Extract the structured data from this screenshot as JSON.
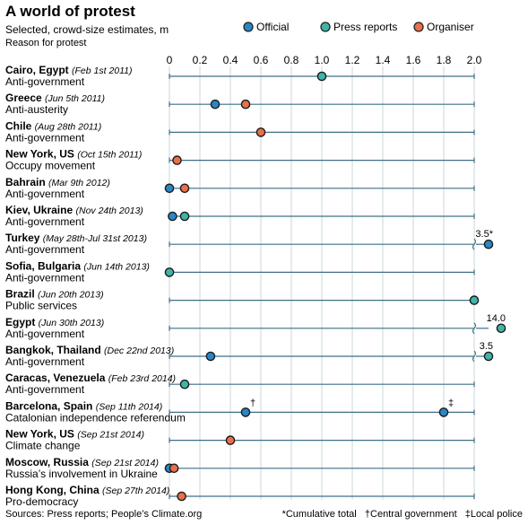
{
  "header": {
    "title": "A world of protest",
    "subtitle": "Selected, crowd-size estimates, m",
    "subsubtitle": "Reason for protest"
  },
  "legend": [
    {
      "key": "official",
      "label": "Official",
      "color": "#2b86c5"
    },
    {
      "key": "press",
      "label": "Press reports",
      "color": "#3fb5a8"
    },
    {
      "key": "organiser",
      "label": "Organiser",
      "color": "#e8704a"
    }
  ],
  "colors": {
    "official": "#2b86c5",
    "press": "#3fb5a8",
    "organiser": "#e8704a",
    "line": "#3f6f86"
  },
  "chart_data": {
    "type": "scatter",
    "title": "A world of protest",
    "subtitle": "Selected, crowd-size estimates, m",
    "xlim": [
      0,
      2.0
    ],
    "ticks": [
      "0",
      "0.2",
      "0.4",
      "0.6",
      "0.8",
      "1.0",
      "1.2",
      "1.4",
      "1.6",
      "1.8",
      "2.0"
    ],
    "tick_values": [
      0,
      0.2,
      0.4,
      0.6,
      0.8,
      1.0,
      1.2,
      1.4,
      1.6,
      1.8,
      2.0
    ],
    "series": [
      {
        "name": "Official",
        "key": "official"
      },
      {
        "name": "Press reports",
        "key": "press"
      },
      {
        "name": "Organiser",
        "key": "organiser"
      }
    ],
    "rows": [
      {
        "place": "Cairo, Egypt",
        "date": "(Feb 1st 2011)",
        "reason": "Anti-government",
        "points": [
          {
            "series": "press",
            "value": 1.0
          }
        ]
      },
      {
        "place": "Greece",
        "date": "(Jun 5th 2011)",
        "reason": "Anti-austerity",
        "points": [
          {
            "series": "official",
            "value": 0.3
          },
          {
            "series": "organiser",
            "value": 0.5
          }
        ]
      },
      {
        "place": "Chile",
        "date": "(Aug 28th 2011)",
        "reason": "Anti-government",
        "points": [
          {
            "series": "organiser",
            "value": 0.6
          }
        ]
      },
      {
        "place": "New York, US",
        "date": "(Oct 15th 2011)",
        "reason": "Occupy movement",
        "points": [
          {
            "series": "organiser",
            "value": 0.05
          }
        ]
      },
      {
        "place": "Bahrain",
        "date": "(Mar 9th 2012)",
        "reason": "Anti-government",
        "points": [
          {
            "series": "official",
            "value": 0.0
          },
          {
            "series": "organiser",
            "value": 0.1
          }
        ]
      },
      {
        "place": "Kiev, Ukraine",
        "date": "(Nov 24th 2013)",
        "reason": "Anti-government",
        "points": [
          {
            "series": "official",
            "value": 0.02
          },
          {
            "series": "press",
            "value": 0.1
          }
        ]
      },
      {
        "place": "Turkey",
        "date": "(May 28th-Jul 31st 2013)",
        "reason": "Anti-government",
        "points": [
          {
            "series": "official",
            "value": 3.5,
            "label": "3.5*",
            "broken": true
          }
        ]
      },
      {
        "place": "Sofia, Bulgaria",
        "date": "(Jun 14th 2013)",
        "reason": "Anti-government",
        "points": [
          {
            "series": "press",
            "value": 0.0
          }
        ]
      },
      {
        "place": "Brazil",
        "date": "(Jun 20th 2013)",
        "reason": "Public services",
        "points": [
          {
            "series": "press",
            "value": 2.0
          }
        ]
      },
      {
        "place": "Egypt",
        "date": "(Jun 30th 2013)",
        "reason": "Anti-government",
        "points": [
          {
            "series": "press",
            "value": 14.0,
            "label": "14.0",
            "broken": true
          }
        ]
      },
      {
        "place": "Bangkok, Thailand",
        "date": "(Dec 22nd 2013)",
        "reason": "Anti-government",
        "points": [
          {
            "series": "official",
            "value": 0.27
          },
          {
            "series": "press",
            "value": 3.5,
            "label": "3.5",
            "broken": true
          }
        ]
      },
      {
        "place": "Caracas, Venezuela",
        "date": "(Feb 23rd 2014)",
        "reason": "Anti-government",
        "points": [
          {
            "series": "press",
            "value": 0.1
          }
        ]
      },
      {
        "place": "Barcelona, Spain",
        "date": "(Sep 11th 2014)",
        "reason": "Catalonian independence referendum",
        "points": [
          {
            "series": "official",
            "value": 0.5,
            "mark": "†"
          },
          {
            "series": "official",
            "value": 1.8,
            "mark": "‡"
          }
        ]
      },
      {
        "place": "New York, US",
        "date": "(Sep 21st 2014)",
        "reason": "Climate change",
        "points": [
          {
            "series": "organiser",
            "value": 0.4
          }
        ]
      },
      {
        "place": "Moscow, Russia",
        "date": "(Sep 21st 2014)",
        "reason": "Russia’s involvement in Ukraine",
        "points": [
          {
            "series": "official",
            "value": 0.0
          },
          {
            "series": "organiser",
            "value": 0.03
          }
        ]
      },
      {
        "place": "Hong Kong, China",
        "date": "(Sep 27th 2014)",
        "reason": "Pro-democracy",
        "points": [
          {
            "series": "organiser",
            "value": 0.08
          }
        ]
      }
    ]
  },
  "footer": {
    "source": "Sources: Press reports; People’s Climate.org",
    "notes": "*Cumulative total   †Central government   ‡Local police"
  }
}
